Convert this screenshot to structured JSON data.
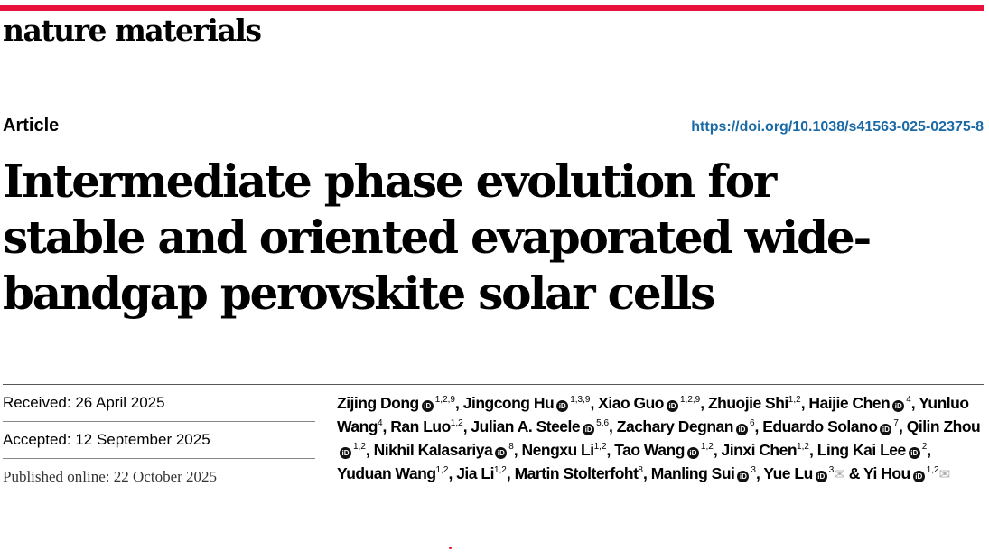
{
  "journal": {
    "name": "nature materials",
    "brand_color": "#e8113b"
  },
  "article_type": "Article",
  "doi": "https://doi.org/10.1038/s41563-025-02375-8",
  "title": "Intermediate phase evolution for stable and oriented evaporated wide-bandgap perovskite solar cells",
  "dates": {
    "received": "Received: 26 April 2025",
    "accepted": "Accepted: 12 September 2025",
    "published": "Published online: 22 October 2025"
  },
  "authors": [
    {
      "name": "Zijing Dong",
      "orcid": true,
      "sup": "1,2,9",
      "sep": ", "
    },
    {
      "name": "Jingcong Hu",
      "orcid": true,
      "sup": "1,3,9",
      "sep": ", "
    },
    {
      "name": "Xiao Guo",
      "orcid": true,
      "sup": "1,2,9",
      "sep": ", "
    },
    {
      "name": "Zhuojie Shi",
      "orcid": false,
      "sup": "1,2",
      "sep": ", "
    },
    {
      "name": "Haijie Chen",
      "orcid": true,
      "sup": "4",
      "sep": ", "
    },
    {
      "name": "Yunluo Wang",
      "orcid": false,
      "sup": "4",
      "sep": ", "
    },
    {
      "name": "Ran Luo",
      "orcid": false,
      "sup": "1,2",
      "sep": ", "
    },
    {
      "name": "Julian A. Steele",
      "orcid": true,
      "sup": "5,6",
      "sep": ", "
    },
    {
      "name": "Zachary Degnan",
      "orcid": true,
      "sup": "6",
      "sep": ", "
    },
    {
      "name": "Eduardo Solano",
      "orcid": true,
      "sup": "7",
      "sep": ", "
    },
    {
      "name": "Qilin Zhou",
      "orcid": true,
      "sup": "1,2",
      "sep": ", "
    },
    {
      "name": "Nikhil Kalasariya",
      "orcid": true,
      "sup": "8",
      "sep": ", "
    },
    {
      "name": "Nengxu Li",
      "orcid": false,
      "sup": "1,2",
      "sep": ", "
    },
    {
      "name": "Tao Wang",
      "orcid": true,
      "sup": "1,2",
      "sep": ", "
    },
    {
      "name": "Jinxi Chen",
      "orcid": false,
      "sup": "1,2",
      "sep": ", "
    },
    {
      "name": "Ling Kai Lee",
      "orcid": true,
      "sup": "2",
      "sep": ", "
    },
    {
      "name": "Yuduan Wang",
      "orcid": false,
      "sup": "1,2",
      "sep": ", "
    },
    {
      "name": "Jia Li",
      "orcid": false,
      "sup": "1,2",
      "sep": ", "
    },
    {
      "name": "Martin Stolterfoht",
      "orcid": false,
      "sup": "8",
      "sep": ", "
    },
    {
      "name": "Manling Sui",
      "orcid": true,
      "sup": "3",
      "sep": ", "
    },
    {
      "name": "Yue Lu",
      "orcid": true,
      "sup": "3",
      "email": true,
      "sep": " & "
    },
    {
      "name": "Yi Hou",
      "orcid": true,
      "sup": "1,2",
      "email": true,
      "sep": ""
    }
  ],
  "icons": {
    "orcid": "orcid-icon",
    "email": "envelope-icon"
  }
}
